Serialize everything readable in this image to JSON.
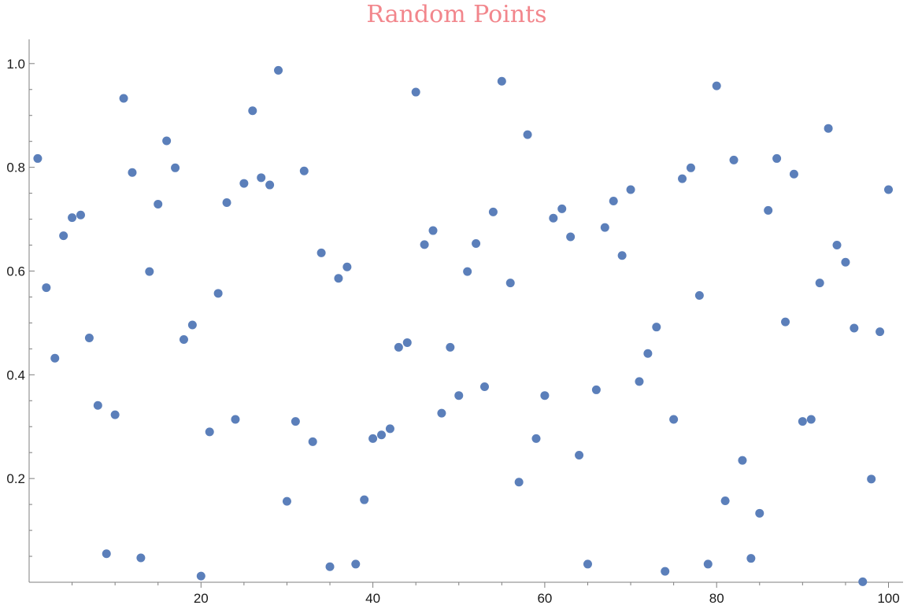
{
  "chart_data": {
    "type": "scatter",
    "title": "Random Points",
    "xlabel": "",
    "ylabel": "",
    "xlim": [
      0,
      101
    ],
    "ylim": [
      0,
      1.05
    ],
    "x_ticks": [
      20,
      40,
      60,
      80,
      100
    ],
    "y_ticks": [
      0.2,
      0.4,
      0.6,
      0.8,
      1.0
    ],
    "x_tick_labels": [
      "20",
      "40",
      "60",
      "80",
      "100"
    ],
    "y_tick_labels": [
      "0.2",
      "0.4",
      "0.6",
      "0.8",
      "1.0"
    ],
    "grid": false,
    "colors": {
      "points": "#5b7fba",
      "title": "#f2868c",
      "axis": "#7f7f7f"
    },
    "series": [
      {
        "x": [
          1,
          2,
          3,
          4,
          5,
          6,
          7,
          8,
          9,
          10,
          11,
          12,
          13,
          14,
          15,
          16,
          17,
          18,
          19,
          20,
          21,
          22,
          23,
          24,
          25,
          26,
          27,
          28,
          29,
          30,
          31,
          32,
          33,
          34,
          35,
          36,
          37,
          38,
          39,
          40,
          41,
          42,
          43,
          44,
          45,
          46,
          47,
          48,
          49,
          50,
          51,
          52,
          53,
          54,
          55,
          56,
          57,
          58,
          59,
          60,
          61,
          62,
          63,
          64,
          65,
          66,
          67,
          68,
          69,
          70,
          71,
          72,
          73,
          74,
          75,
          76,
          77,
          78,
          79,
          80,
          81,
          82,
          83,
          84,
          85,
          86,
          87,
          88,
          89,
          90,
          91,
          92,
          93,
          94,
          95,
          96,
          97,
          98,
          99,
          100
        ],
        "y": [
          0.817,
          0.568,
          0.432,
          0.668,
          0.703,
          0.708,
          0.471,
          0.341,
          0.055,
          0.323,
          0.933,
          0.79,
          0.047,
          0.599,
          0.729,
          0.851,
          0.799,
          0.468,
          0.496,
          0.012,
          0.29,
          0.557,
          0.732,
          0.314,
          0.769,
          0.909,
          0.78,
          0.766,
          0.987,
          0.156,
          0.31,
          0.793,
          0.271,
          0.635,
          0.03,
          0.586,
          0.608,
          0.035,
          0.159,
          0.277,
          0.284,
          0.296,
          0.453,
          0.462,
          0.945,
          0.651,
          0.678,
          0.326,
          0.453,
          0.36,
          0.599,
          0.653,
          0.377,
          0.714,
          0.966,
          0.577,
          0.193,
          0.863,
          0.277,
          0.36,
          0.702,
          0.72,
          0.666,
          0.245,
          0.035,
          0.371,
          0.684,
          0.735,
          0.63,
          0.757,
          0.387,
          0.441,
          0.492,
          0.021,
          0.314,
          0.778,
          0.799,
          0.553,
          0.035,
          0.957,
          0.157,
          0.814,
          0.235,
          0.046,
          0.133,
          0.717,
          0.817,
          0.502,
          0.787,
          0.31,
          0.314,
          0.577,
          0.875,
          0.65,
          0.617,
          0.49,
          0.001,
          0.199,
          0.483,
          0.757
        ]
      }
    ]
  }
}
